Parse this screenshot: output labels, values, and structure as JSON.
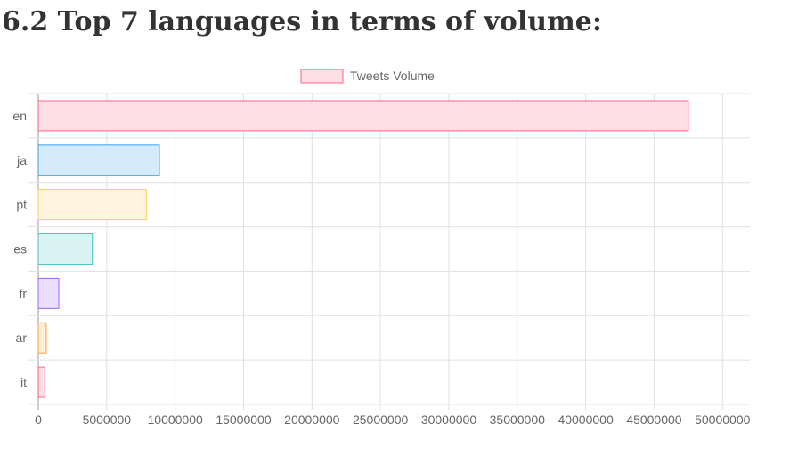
{
  "heading": "6.2 Top 7 languages in terms of volume:",
  "chart_data": {
    "type": "bar",
    "orientation": "horizontal",
    "title": "",
    "xlabel": "",
    "ylabel": "",
    "legend": {
      "position": "top",
      "entries": [
        "Tweets Volume"
      ]
    },
    "grid": true,
    "categories": [
      "en",
      "ja",
      "pt",
      "es",
      "fr",
      "ar",
      "it"
    ],
    "series": [
      {
        "name": "Tweets Volume",
        "values": [
          47500000,
          8850000,
          7900000,
          3950000,
          1500000,
          580000,
          480000
        ]
      }
    ],
    "xlim": [
      0,
      52000000
    ],
    "x_ticks": [
      0,
      5000000,
      10000000,
      15000000,
      20000000,
      25000000,
      30000000,
      35000000,
      40000000,
      45000000,
      50000000
    ],
    "bar_fills": [
      "#ffdfe6",
      "#d6ebf9",
      "#fff4de",
      "#dbf4f3",
      "#ebe0ff",
      "#ffecd9",
      "#ffdfe6"
    ],
    "bar_strokes": [
      "#ff6384",
      "#36a2eb",
      "#ffcd56",
      "#4bc0c0",
      "#9966ff",
      "#ff9f40",
      "#ff6384"
    ]
  }
}
